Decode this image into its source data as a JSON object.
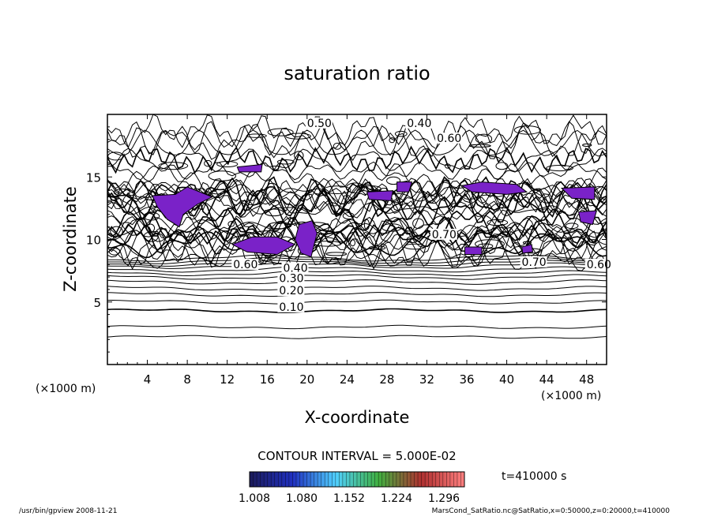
{
  "chart_data": {
    "type": "contour",
    "title": "saturation ratio",
    "xlabel": "X-coordinate",
    "ylabel": "Z-coordinate",
    "x_unit_label": "(×1000 m)",
    "z_unit_label": "(×1000 m)",
    "xlim": [
      0,
      50
    ],
    "ylim": [
      0,
      20
    ],
    "x_ticks": [
      4,
      8,
      12,
      16,
      20,
      24,
      28,
      32,
      36,
      40,
      44,
      48
    ],
    "y_ticks": [
      5,
      10,
      15
    ],
    "contour_interval_label": "CONTOUR INTERVAL = 5.000E-02",
    "contour_labels": [
      {
        "text": "0.10",
        "x": 17.2,
        "z": 4.3
      },
      {
        "text": "0.20",
        "x": 17.2,
        "z": 5.6
      },
      {
        "text": "0.30",
        "x": 17.2,
        "z": 6.6
      },
      {
        "text": "0.40",
        "x": 17.6,
        "z": 7.4
      },
      {
        "text": "0.60",
        "x": 12.6,
        "z": 7.7
      },
      {
        "text": "0.50",
        "x": 20.0,
        "z": 19.0
      },
      {
        "text": "0.40",
        "x": 30.0,
        "z": 19.0
      },
      {
        "text": "0.60",
        "x": 33.0,
        "z": 17.8
      },
      {
        "text": "0.70",
        "x": 32.5,
        "z": 10.1
      },
      {
        "text": "0.70",
        "x": 41.5,
        "z": 7.9
      },
      {
        "text": "0.60",
        "x": 48.0,
        "z": 7.7
      }
    ],
    "shaded_regions_x_z": [
      [
        [
          4.5,
          13.5
        ],
        [
          6.8,
          13.6
        ],
        [
          8.0,
          14.2
        ],
        [
          10.5,
          13.4
        ],
        [
          9.0,
          12.8
        ],
        [
          7.6,
          12.0
        ],
        [
          7.2,
          11.0
        ],
        [
          6.0,
          11.6
        ],
        [
          5.0,
          12.6
        ]
      ],
      [
        [
          19.2,
          11.2
        ],
        [
          20.5,
          11.5
        ],
        [
          21.0,
          10.5
        ],
        [
          20.4,
          8.6
        ],
        [
          19.4,
          8.9
        ],
        [
          18.8,
          10.0
        ]
      ],
      [
        [
          12.5,
          9.6
        ],
        [
          14.5,
          10.2
        ],
        [
          17.0,
          10.2
        ],
        [
          18.8,
          9.6
        ],
        [
          17.0,
          8.8
        ],
        [
          14.0,
          9.0
        ]
      ],
      [
        [
          35.5,
          14.3
        ],
        [
          37.5,
          14.6
        ],
        [
          41.0,
          14.4
        ],
        [
          42.0,
          13.8
        ],
        [
          40.0,
          13.6
        ],
        [
          36.5,
          13.8
        ]
      ],
      [
        [
          45.5,
          14.1
        ],
        [
          48.8,
          14.2
        ],
        [
          48.8,
          13.2
        ],
        [
          46.5,
          13.3
        ]
      ],
      [
        [
          47.2,
          12.2
        ],
        [
          49.0,
          12.3
        ],
        [
          48.6,
          11.2
        ],
        [
          47.4,
          11.4
        ]
      ],
      [
        [
          41.5,
          9.4
        ],
        [
          42.5,
          9.6
        ],
        [
          42.6,
          9.0
        ],
        [
          41.6,
          8.9
        ]
      ],
      [
        [
          35.8,
          9.4
        ],
        [
          37.5,
          9.4
        ],
        [
          37.5,
          8.8
        ],
        [
          35.8,
          8.8
        ]
      ],
      [
        [
          13.0,
          15.8
        ],
        [
          15.5,
          16.0
        ],
        [
          15.4,
          15.4
        ],
        [
          13.2,
          15.4
        ]
      ],
      [
        [
          26.0,
          13.8
        ],
        [
          28.6,
          13.9
        ],
        [
          28.4,
          13.1
        ],
        [
          26.2,
          13.2
        ]
      ],
      [
        [
          29.0,
          14.6
        ],
        [
          30.5,
          14.6
        ],
        [
          30.2,
          13.8
        ],
        [
          29.0,
          13.8
        ]
      ]
    ],
    "colorbar": {
      "tick_labels": [
        "1.008",
        "1.080",
        "1.152",
        "1.224",
        "1.296"
      ],
      "colors": [
        "#1b1b5a",
        "#2030c0",
        "#50d0ff",
        "#40b040",
        "#b03030",
        "#ff8080"
      ]
    },
    "time_label": "t=410000 s"
  },
  "footer": {
    "left": "/usr/bin/gpview  2008-11-21",
    "right": "MarsCond_SatRatio.nc@SatRatio,x=0:50000,z=0:20000,t=410000"
  }
}
